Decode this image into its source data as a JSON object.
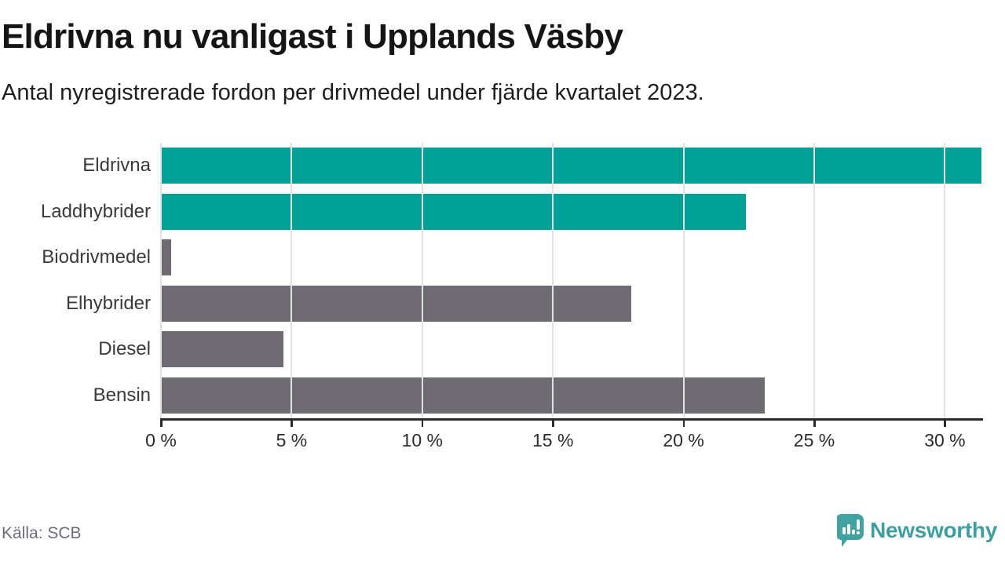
{
  "header": {
    "title": "Eldrivna nu vanligast i Upplands Väsby",
    "subtitle": "Antal nyregistrerade fordon per drivmedel under fjärde kvartalet 2023."
  },
  "chart_data": {
    "type": "bar",
    "orientation": "horizontal",
    "title": "Eldrivna nu vanligast i Upplands Väsby",
    "subtitle": "Antal nyregistrerade fordon per drivmedel under fjärde kvartalet 2023.",
    "categories": [
      "Eldrivna",
      "Laddhybrider",
      "Biodrivmedel",
      "Elhybrider",
      "Diesel",
      "Bensin"
    ],
    "values": [
      31.4,
      22.4,
      0.4,
      18.0,
      4.7,
      23.1
    ],
    "unit": "%",
    "xlim": [
      0,
      31.4
    ],
    "ticks": [
      0,
      5,
      10,
      15,
      20,
      25,
      30
    ],
    "tick_labels": [
      "0 %",
      "5 %",
      "10 %",
      "15 %",
      "20 %",
      "25 %",
      "30 %"
    ],
    "grid": "vertical-light-over-bars",
    "legend": "none",
    "bar_colors": [
      "#00a096",
      "#00a096",
      "#6e6b72",
      "#6e6b72",
      "#6e6b72",
      "#6e6b72"
    ],
    "colors": {
      "highlight": "#00a096",
      "default": "#6e6b72",
      "gridline": "#e2e2e2",
      "axis": "#2b2b2b"
    }
  },
  "footer": {
    "source": "Källa: SCB",
    "brand": "Newsworthy",
    "brand_color": "#3f9e9e"
  },
  "icons": {
    "logo": "newsworthy-speech-bubble-bar-chart-icon"
  }
}
